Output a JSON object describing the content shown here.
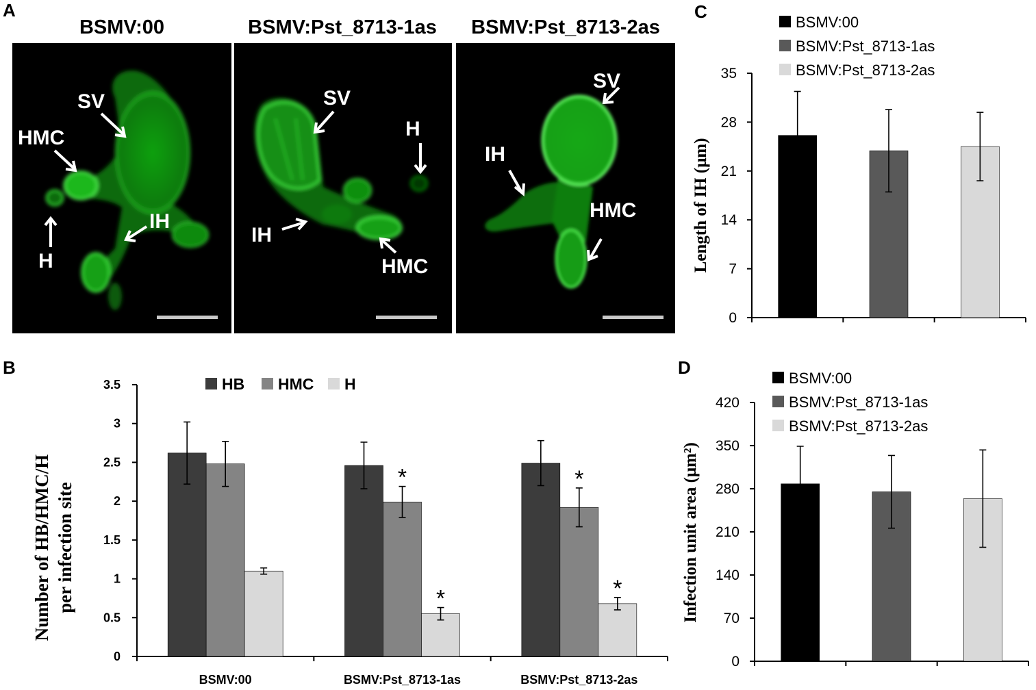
{
  "panel_a": {
    "letter": "A",
    "images": [
      {
        "title": "BSMV:00",
        "labels": [
          "SV",
          "HMC",
          "IH",
          "H"
        ]
      },
      {
        "title": "BSMV:Pst_8713-1as",
        "labels": [
          "SV",
          "H",
          "IH",
          "HMC"
        ]
      },
      {
        "title": "BSMV:Pst_8713-2as",
        "labels": [
          "SV",
          "IH",
          "HMC"
        ]
      }
    ]
  },
  "chart_data": [
    {
      "panel": "B",
      "type": "bar",
      "title": "",
      "ylabel": "Number of HB/HMC/H per infection site",
      "xlabel": "",
      "categories": [
        "BSMV:00",
        "BSMV:Pst_8713-1as",
        "BSMV:Pst_8713-2as"
      ],
      "ylim": [
        0,
        3.5
      ],
      "yticks": [
        "0",
        "0.5",
        "1",
        "1.5",
        "2",
        "2.5",
        "3",
        "3.5"
      ],
      "legend_position": "top",
      "series": [
        {
          "name": "HB",
          "color": "#3c3c3c",
          "values": [
            2.62,
            2.46,
            2.49
          ],
          "errors": [
            0.4,
            0.3,
            0.29
          ],
          "marks": [
            "",
            "",
            ""
          ]
        },
        {
          "name": "HMC",
          "color": "#848484",
          "values": [
            2.48,
            1.99,
            1.92
          ],
          "errors": [
            0.29,
            0.2,
            0.25
          ],
          "marks": [
            "",
            "*",
            "*"
          ]
        },
        {
          "name": "H",
          "color": "#d9d9d9",
          "values": [
            1.1,
            0.55,
            0.68
          ],
          "errors": [
            0.04,
            0.08,
            0.08
          ],
          "marks": [
            "",
            "*",
            "*"
          ]
        }
      ]
    },
    {
      "panel": "C",
      "type": "bar",
      "title": "",
      "ylabel": "Length of IH (μm)",
      "xlabel": "",
      "categories": [
        "BSMV:00",
        "BSMV:Pst_8713-1as",
        "BSMV:Pst_8713-2as"
      ],
      "ylim": [
        0,
        35
      ],
      "yticks": [
        "0",
        "7",
        "14",
        "21",
        "28",
        "35"
      ],
      "legend_position": "top-left",
      "series": [
        {
          "name": "BSMV:00",
          "color": "#000000",
          "value": 26.1,
          "error": 6.3
        },
        {
          "name": "BSMV:Pst_8713-1as",
          "color": "#595959",
          "value": 23.9,
          "error": 5.9
        },
        {
          "name": "BSMV:Pst_8713-2as",
          "color": "#d9d9d9",
          "value": 24.5,
          "error": 4.9
        }
      ]
    },
    {
      "panel": "D",
      "type": "bar",
      "title": "",
      "ylabel": "Infection unit area (μm²)",
      "xlabel": "",
      "categories": [
        "BSMV:00",
        "BSMV:Pst_8713-1as",
        "BSMV:Pst_8713-2as"
      ],
      "ylim": [
        0,
        420
      ],
      "yticks": [
        "0",
        "70",
        "140",
        "210",
        "280",
        "350",
        "420"
      ],
      "legend_position": "top-left",
      "series": [
        {
          "name": "BSMV:00",
          "color": "#000000",
          "value": 288,
          "error": 61
        },
        {
          "name": "BSMV:Pst_8713-1as",
          "color": "#595959",
          "value": 275,
          "error": 59
        },
        {
          "name": "BSMV:Pst_8713-2as",
          "color": "#d9d9d9",
          "value": 264,
          "error": 79
        }
      ]
    }
  ]
}
